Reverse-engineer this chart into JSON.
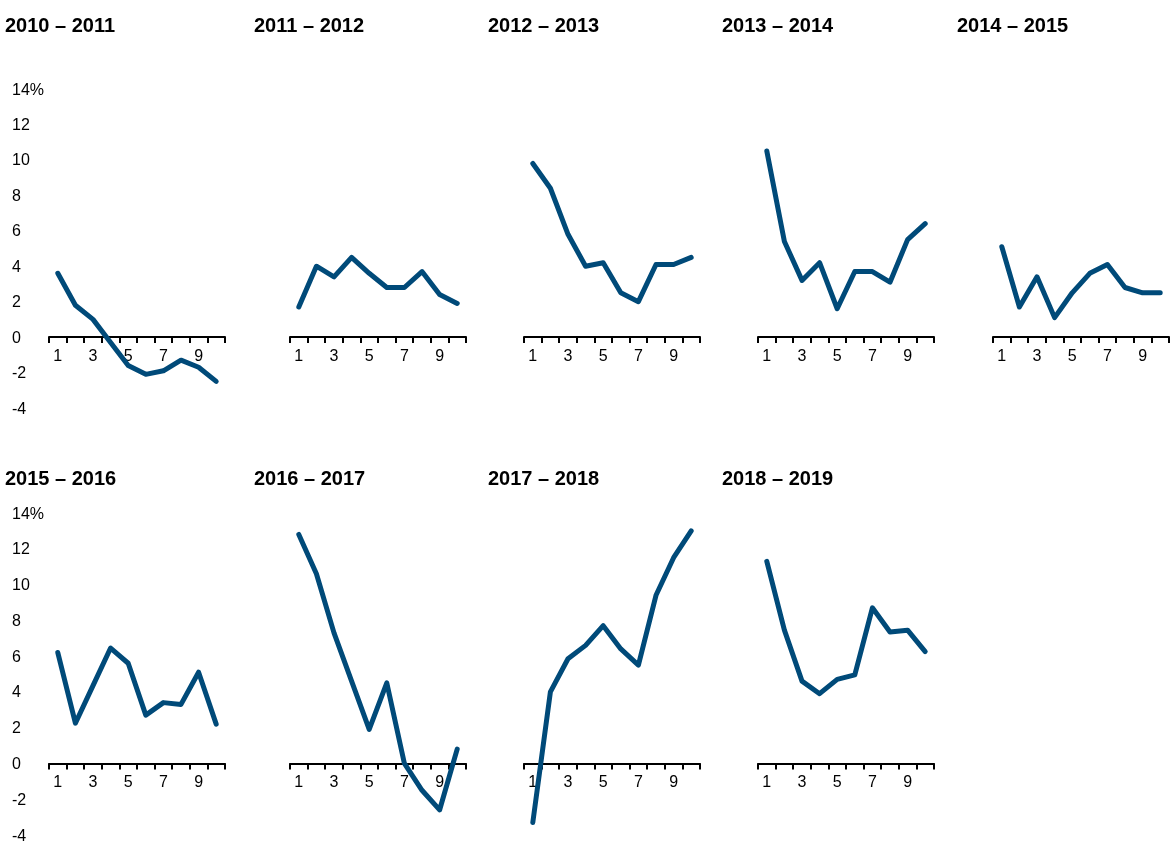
{
  "chart_data": [
    {
      "type": "line",
      "title": "2010 – 2011",
      "categories": [
        "1",
        null,
        "3",
        null,
        "5",
        null,
        "7",
        null,
        "9",
        null
      ],
      "color": "#004a79",
      "values": [
        3.6,
        1.8,
        1.0,
        -0.3,
        -1.6,
        -2.1,
        -1.9,
        -1.3,
        -1.7,
        -2.5
      ],
      "ylim": [
        -4,
        14
      ],
      "yticks": [
        -4,
        -2,
        0,
        2,
        4,
        6,
        8,
        10,
        12,
        {
          "value": 14,
          "label": "14%"
        }
      ]
    },
    {
      "type": "line",
      "title": "2011 – 2012",
      "categories": [
        "1",
        null,
        "3",
        null,
        "5",
        null,
        "7",
        null,
        "9",
        null
      ],
      "color": "#004a79",
      "values": [
        1.7,
        4.0,
        3.4,
        4.5,
        3.6,
        2.8,
        2.8,
        3.7,
        2.4,
        1.9
      ],
      "ylim": [
        -4,
        14
      ],
      "tick_labels": "x"
    },
    {
      "type": "line",
      "title": "2012 – 2013",
      "categories": [
        "1",
        null,
        "3",
        null,
        "5",
        null,
        "7",
        null,
        "9",
        null
      ],
      "color": "#004a79",
      "values": [
        9.8,
        8.4,
        5.8,
        4.0,
        4.2,
        2.5,
        2.0,
        4.1,
        4.1,
        4.5
      ],
      "ylim": [
        -4,
        14
      ],
      "tick_labels": "x"
    },
    {
      "type": "line",
      "title": "2013 – 2014",
      "categories": [
        "1",
        null,
        "3",
        null,
        "5",
        null,
        "7",
        null,
        "9",
        null
      ],
      "color": "#004a79",
      "values": [
        10.5,
        5.4,
        3.2,
        4.2,
        1.6,
        3.7,
        3.7,
        3.1,
        5.5,
        6.4
      ],
      "ylim": [
        -4,
        14
      ],
      "tick_labels": "x"
    },
    {
      "type": "line",
      "title": "2014 – 2015",
      "categories": [
        "1",
        null,
        "3",
        null,
        "5",
        null,
        "7",
        null,
        "9",
        null
      ],
      "color": "#004a79",
      "values": [
        5.1,
        1.7,
        3.4,
        1.1,
        2.5,
        3.6,
        4.1,
        2.8,
        2.5,
        2.5
      ],
      "ylim": [
        -4,
        14
      ],
      "tick_labels": "x"
    },
    {
      "type": "line",
      "title": "2015 – 2016",
      "categories": [
        "1",
        null,
        "3",
        null,
        "5",
        null,
        "7",
        null,
        "9",
        null
      ],
      "color": "#004a79",
      "values": [
        6.2,
        2.25,
        4.35,
        6.45,
        5.6,
        2.7,
        3.4,
        3.3,
        5.1,
        2.2
      ],
      "ylim": [
        -4,
        14
      ],
      "yticks": [
        -4,
        -2,
        0,
        2,
        4,
        6,
        8,
        10,
        12,
        {
          "value": 14,
          "label": "14%"
        }
      ]
    },
    {
      "type": "line",
      "title": "2016 – 2017",
      "categories": [
        "1",
        null,
        "3",
        null,
        "5",
        null,
        "7",
        null,
        "9",
        null
      ],
      "color": "#004a79",
      "values": [
        12.8,
        10.6,
        7.3,
        4.6,
        1.9,
        4.5,
        0,
        -1.5,
        -2.6,
        0.8
      ],
      "ylim": [
        -4,
        14
      ],
      "tick_labels": "x"
    },
    {
      "type": "line",
      "title": "2017 – 2018",
      "categories": [
        "1",
        null,
        "3",
        null,
        "5",
        null,
        "7",
        null,
        "9",
        null
      ],
      "color": "#004a79",
      "values": [
        -3.3,
        4.0,
        5.85,
        6.6,
        7.7,
        6.4,
        5.5,
        9.4,
        11.5,
        13.0
      ],
      "ylim": [
        -4,
        14
      ],
      "tick_labels": "x"
    },
    {
      "type": "line",
      "title": "2018 – 2019",
      "categories": [
        "1",
        null,
        "3",
        null,
        "5",
        null,
        "7",
        null,
        "9",
        null
      ],
      "color": "#004a79",
      "values": [
        11.3,
        7.45,
        4.6,
        3.9,
        4.7,
        4.95,
        8.7,
        7.35,
        7.45,
        6.25
      ],
      "ylim": [
        -4,
        14
      ],
      "tick_labels": "x"
    }
  ]
}
